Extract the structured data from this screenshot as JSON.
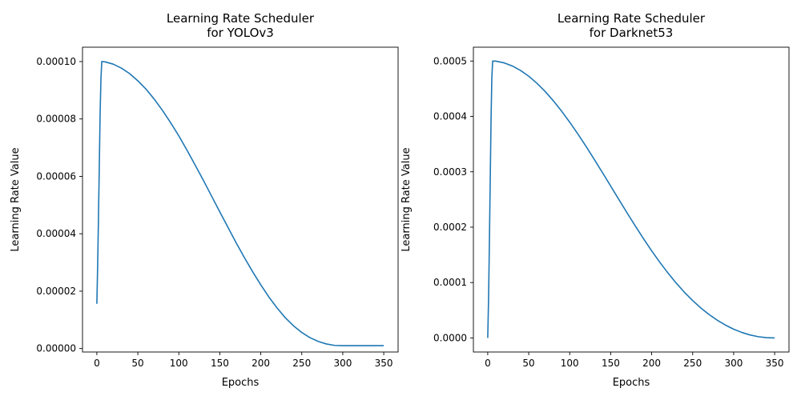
{
  "chart_data": [
    {
      "type": "line",
      "title": [
        "Learning Rate Scheduler",
        "for YOLOv3"
      ],
      "xlabel": "Epochs",
      "ylabel": "Learning Rate Value",
      "xlim": [
        -17.5,
        367.5
      ],
      "ylim": [
        -1.2e-06,
        0.000105
      ],
      "xticks": [
        0,
        50,
        100,
        150,
        200,
        250,
        300,
        350
      ],
      "xtick_labels": [
        "0",
        "50",
        "100",
        "150",
        "200",
        "250",
        "300",
        "350"
      ],
      "yticks": [
        0,
        2e-05,
        4e-05,
        6e-05,
        8e-05,
        0.0001
      ],
      "ytick_labels": [
        "0.00000",
        "0.00002",
        "0.00004",
        "0.00006",
        "0.00008",
        "0.00010"
      ],
      "grid": false,
      "color": "#1f77b4",
      "series": [
        {
          "x": [
            0,
            1,
            2,
            3,
            4,
            5,
            6,
            10,
            20,
            30,
            40,
            50,
            60,
            70,
            80,
            90,
            100,
            110,
            120,
            130,
            140,
            150,
            160,
            170,
            180,
            190,
            200,
            210,
            220,
            230,
            240,
            250,
            260,
            270,
            280,
            290,
            300,
            310,
            320,
            330,
            340,
            350
          ],
          "y": [
            1.56e-05,
            2.9e-05,
            4.6e-05,
            6.4e-05,
            8.2e-05,
            9.4e-05,
            0.0001,
            9.99e-05,
            9.91e-05,
            9.77e-05,
            9.58e-05,
            9.33e-05,
            9.04e-05,
            8.69e-05,
            8.3e-05,
            7.87e-05,
            7.41e-05,
            6.91e-05,
            6.39e-05,
            5.86e-05,
            5.31e-05,
            4.76e-05,
            4.22e-05,
            3.68e-05,
            3.17e-05,
            2.68e-05,
            2.22e-05,
            1.79e-05,
            1.41e-05,
            1.07e-05,
            7.9e-06,
            5.6e-06,
            3.8e-06,
            2.5e-06,
            1.6e-06,
            1.1e-06,
            1e-06,
            1e-06,
            1e-06,
            1e-06,
            1e-06,
            1e-06
          ]
        }
      ]
    },
    {
      "type": "line",
      "title": [
        "Learning Rate Scheduler",
        "for Darknet53"
      ],
      "xlabel": "Epochs",
      "ylabel": "Learning Rate Value",
      "xlim": [
        -17.5,
        367.5
      ],
      "ylim": [
        -2.54e-05,
        0.000525
      ],
      "xticks": [
        0,
        50,
        100,
        150,
        200,
        250,
        300,
        350
      ],
      "xtick_labels": [
        "0",
        "50",
        "100",
        "150",
        "200",
        "250",
        "300",
        "350"
      ],
      "yticks": [
        0,
        0.0001,
        0.0002,
        0.0003,
        0.0004,
        0.0005
      ],
      "ytick_labels": [
        "0.0000",
        "0.0001",
        "0.0002",
        "0.0003",
        "0.0004",
        "0.0005"
      ],
      "grid": false,
      "color": "#1f77b4",
      "series": [
        {
          "x": [
            0,
            1,
            2,
            3,
            4,
            5,
            6,
            10,
            20,
            30,
            40,
            50,
            60,
            70,
            80,
            90,
            100,
            110,
            120,
            130,
            140,
            150,
            160,
            170,
            180,
            190,
            200,
            210,
            220,
            230,
            240,
            250,
            260,
            270,
            280,
            290,
            300,
            310,
            320,
            330,
            340,
            350
          ],
          "y": [
            0.0,
            7e-05,
            0.00017,
            0.00028,
            0.00039,
            0.00047,
            0.0005,
            0.0004998,
            0.0004967,
            0.0004911,
            0.000483,
            0.0004726,
            0.0004599,
            0.0004451,
            0.0004283,
            0.0004097,
            0.0003896,
            0.0003682,
            0.0003457,
            0.0003223,
            0.0002984,
            0.0002742,
            0.0002499,
            0.0002258,
            0.0002022,
            0.0001793,
            0.0001573,
            0.0001365,
            0.000117,
            9.89e-05,
            8.24e-05,
            6.75e-05,
            5.41e-05,
            4.23e-05,
            3.2e-05,
            2.32e-05,
            1.58e-05,
            9.9e-06,
            5.4e-06,
            2.2e-06,
            5e-07,
            0.0
          ]
        }
      ]
    }
  ]
}
